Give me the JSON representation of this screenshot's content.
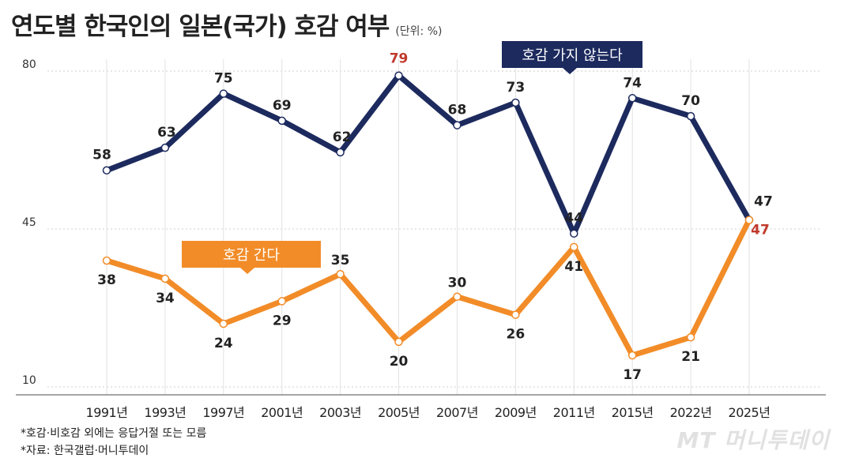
{
  "title": "연도별 한국인의 일본(국가) 호감 여부",
  "unit": "(단위: %)",
  "chart_data": {
    "type": "line",
    "categories": [
      "1991년",
      "1993년",
      "1997년",
      "2001년",
      "2003년",
      "2005년",
      "2007년",
      "2009년",
      "2011년",
      "2015년",
      "2022년",
      "2025년"
    ],
    "series": [
      {
        "name": "호감 가지 않는다",
        "color": "#1c2a5e",
        "values": [
          58,
          63,
          75,
          69,
          62,
          79,
          68,
          73,
          44,
          74,
          70,
          47
        ],
        "highlight_index": 5,
        "highlight_color": "#c0392b"
      },
      {
        "name": "호감 간다",
        "color": "#f28c28",
        "values": [
          38,
          34,
          24,
          29,
          35,
          20,
          30,
          26,
          41,
          17,
          21,
          47
        ],
        "highlight_index": 11,
        "highlight_color": "#c0392b"
      }
    ],
    "yticks": [
      80,
      45,
      10
    ],
    "ylim": [
      10,
      80
    ],
    "grid": true
  },
  "footnotes": [
    "*호감·비호감 외에는 응답거절 또는 모름",
    "*자료: 한국갤럽·머니투데이"
  ],
  "watermark": "MT 머니투데이"
}
